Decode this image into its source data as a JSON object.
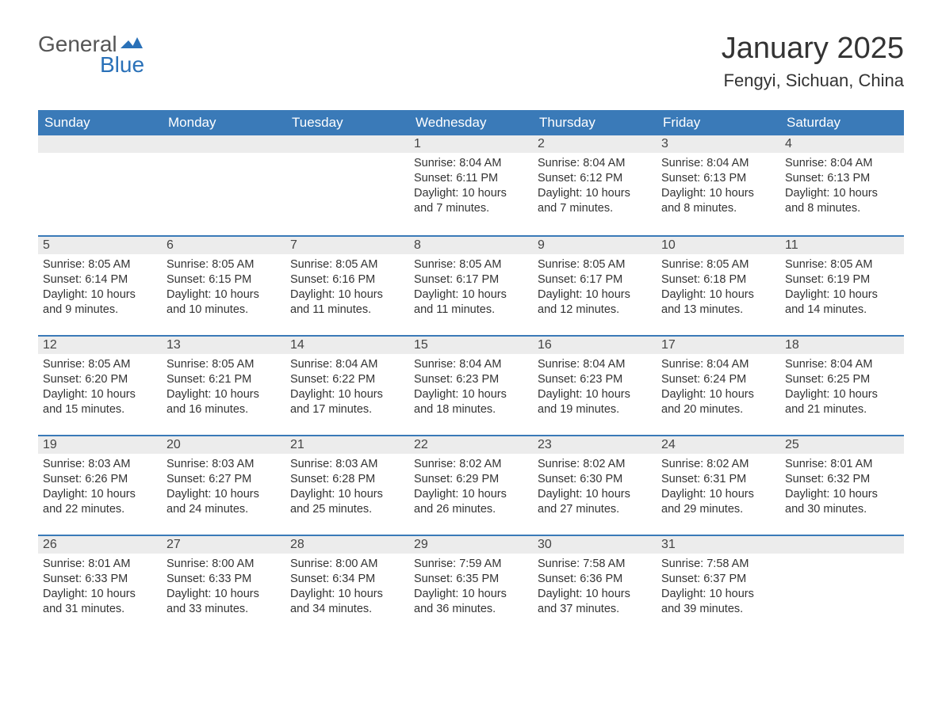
{
  "brand": {
    "word1": "General",
    "word2": "Blue",
    "flag_color": "#2a71b8",
    "word1_color": "#555555",
    "word2_color": "#2a71b8"
  },
  "header": {
    "title": "January 2025",
    "location": "Fengyi, Sichuan, China"
  },
  "colors": {
    "header_bg": "#3a7ab8",
    "header_text": "#ffffff",
    "daynum_bg": "#ececec",
    "row_border": "#3a7ab8",
    "body_text": "#333333",
    "page_bg": "#ffffff"
  },
  "typography": {
    "title_fontsize": 38,
    "location_fontsize": 22,
    "weekday_fontsize": 17,
    "daynum_fontsize": 16,
    "body_fontsize": 14.5
  },
  "calendar": {
    "weekdays": [
      "Sunday",
      "Monday",
      "Tuesday",
      "Wednesday",
      "Thursday",
      "Friday",
      "Saturday"
    ],
    "weeks": [
      [
        null,
        null,
        null,
        {
          "n": "1",
          "sunrise": "8:04 AM",
          "sunset": "6:11 PM",
          "daylight": "10 hours and 7 minutes."
        },
        {
          "n": "2",
          "sunrise": "8:04 AM",
          "sunset": "6:12 PM",
          "daylight": "10 hours and 7 minutes."
        },
        {
          "n": "3",
          "sunrise": "8:04 AM",
          "sunset": "6:13 PM",
          "daylight": "10 hours and 8 minutes."
        },
        {
          "n": "4",
          "sunrise": "8:04 AM",
          "sunset": "6:13 PM",
          "daylight": "10 hours and 8 minutes."
        }
      ],
      [
        {
          "n": "5",
          "sunrise": "8:05 AM",
          "sunset": "6:14 PM",
          "daylight": "10 hours and 9 minutes."
        },
        {
          "n": "6",
          "sunrise": "8:05 AM",
          "sunset": "6:15 PM",
          "daylight": "10 hours and 10 minutes."
        },
        {
          "n": "7",
          "sunrise": "8:05 AM",
          "sunset": "6:16 PM",
          "daylight": "10 hours and 11 minutes."
        },
        {
          "n": "8",
          "sunrise": "8:05 AM",
          "sunset": "6:17 PM",
          "daylight": "10 hours and 11 minutes."
        },
        {
          "n": "9",
          "sunrise": "8:05 AM",
          "sunset": "6:17 PM",
          "daylight": "10 hours and 12 minutes."
        },
        {
          "n": "10",
          "sunrise": "8:05 AM",
          "sunset": "6:18 PM",
          "daylight": "10 hours and 13 minutes."
        },
        {
          "n": "11",
          "sunrise": "8:05 AM",
          "sunset": "6:19 PM",
          "daylight": "10 hours and 14 minutes."
        }
      ],
      [
        {
          "n": "12",
          "sunrise": "8:05 AM",
          "sunset": "6:20 PM",
          "daylight": "10 hours and 15 minutes."
        },
        {
          "n": "13",
          "sunrise": "8:05 AM",
          "sunset": "6:21 PM",
          "daylight": "10 hours and 16 minutes."
        },
        {
          "n": "14",
          "sunrise": "8:04 AM",
          "sunset": "6:22 PM",
          "daylight": "10 hours and 17 minutes."
        },
        {
          "n": "15",
          "sunrise": "8:04 AM",
          "sunset": "6:23 PM",
          "daylight": "10 hours and 18 minutes."
        },
        {
          "n": "16",
          "sunrise": "8:04 AM",
          "sunset": "6:23 PM",
          "daylight": "10 hours and 19 minutes."
        },
        {
          "n": "17",
          "sunrise": "8:04 AM",
          "sunset": "6:24 PM",
          "daylight": "10 hours and 20 minutes."
        },
        {
          "n": "18",
          "sunrise": "8:04 AM",
          "sunset": "6:25 PM",
          "daylight": "10 hours and 21 minutes."
        }
      ],
      [
        {
          "n": "19",
          "sunrise": "8:03 AM",
          "sunset": "6:26 PM",
          "daylight": "10 hours and 22 minutes."
        },
        {
          "n": "20",
          "sunrise": "8:03 AM",
          "sunset": "6:27 PM",
          "daylight": "10 hours and 24 minutes."
        },
        {
          "n": "21",
          "sunrise": "8:03 AM",
          "sunset": "6:28 PM",
          "daylight": "10 hours and 25 minutes."
        },
        {
          "n": "22",
          "sunrise": "8:02 AM",
          "sunset": "6:29 PM",
          "daylight": "10 hours and 26 minutes."
        },
        {
          "n": "23",
          "sunrise": "8:02 AM",
          "sunset": "6:30 PM",
          "daylight": "10 hours and 27 minutes."
        },
        {
          "n": "24",
          "sunrise": "8:02 AM",
          "sunset": "6:31 PM",
          "daylight": "10 hours and 29 minutes."
        },
        {
          "n": "25",
          "sunrise": "8:01 AM",
          "sunset": "6:32 PM",
          "daylight": "10 hours and 30 minutes."
        }
      ],
      [
        {
          "n": "26",
          "sunrise": "8:01 AM",
          "sunset": "6:33 PM",
          "daylight": "10 hours and 31 minutes."
        },
        {
          "n": "27",
          "sunrise": "8:00 AM",
          "sunset": "6:33 PM",
          "daylight": "10 hours and 33 minutes."
        },
        {
          "n": "28",
          "sunrise": "8:00 AM",
          "sunset": "6:34 PM",
          "daylight": "10 hours and 34 minutes."
        },
        {
          "n": "29",
          "sunrise": "7:59 AM",
          "sunset": "6:35 PM",
          "daylight": "10 hours and 36 minutes."
        },
        {
          "n": "30",
          "sunrise": "7:58 AM",
          "sunset": "6:36 PM",
          "daylight": "10 hours and 37 minutes."
        },
        {
          "n": "31",
          "sunrise": "7:58 AM",
          "sunset": "6:37 PM",
          "daylight": "10 hours and 39 minutes."
        },
        null
      ]
    ],
    "labels": {
      "sunrise": "Sunrise:",
      "sunset": "Sunset:",
      "daylight": "Daylight:"
    }
  }
}
